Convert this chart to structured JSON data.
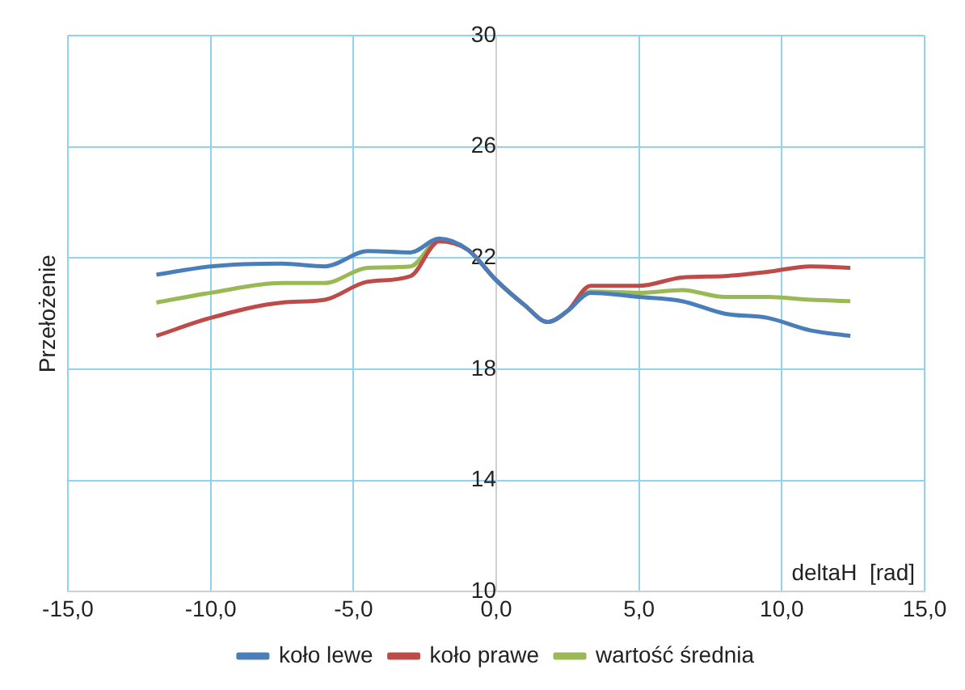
{
  "chart_data": {
    "type": "line",
    "xlabel": "deltaH  [rad]",
    "ylabel": "Przełożenie",
    "x": [
      -11.9,
      -10,
      -7.5,
      -6,
      -4.5,
      -3,
      -2,
      -1,
      0,
      1,
      1.8,
      2.5,
      3.3,
      5,
      6.5,
      8,
      9.5,
      11,
      12.4
    ],
    "series": [
      {
        "name": "koło lewe",
        "color": "#4a7ebb",
        "values": [
          21.4,
          21.7,
          21.8,
          21.7,
          22.25,
          22.2,
          22.7,
          22.3,
          21.2,
          20.3,
          19.7,
          20.1,
          20.75,
          20.6,
          20.45,
          20.0,
          19.85,
          19.4,
          19.2
        ]
      },
      {
        "name": "koło prawe",
        "color": "#be4b48",
        "values": [
          19.2,
          19.85,
          20.4,
          20.5,
          21.15,
          21.35,
          22.6,
          22.3,
          21.2,
          20.3,
          19.7,
          20.1,
          21.0,
          21.0,
          21.3,
          21.35,
          21.5,
          21.7,
          21.65
        ]
      },
      {
        "name": "wartość średnia",
        "color": "#98b954",
        "values": [
          20.4,
          20.75,
          21.1,
          21.1,
          21.65,
          21.7,
          22.65,
          22.3,
          21.2,
          20.3,
          19.7,
          20.1,
          20.8,
          20.75,
          20.85,
          20.6,
          20.6,
          20.5,
          20.45
        ]
      }
    ],
    "xlim": [
      -15,
      15
    ],
    "ylim": [
      10,
      30
    ],
    "xticks": [
      {
        "value": -15,
        "label": "-15,0"
      },
      {
        "value": -10,
        "label": "-10,0"
      },
      {
        "value": -5,
        "label": "-5,0"
      },
      {
        "value": 0,
        "label": "0,0"
      },
      {
        "value": 5,
        "label": "5,0"
      },
      {
        "value": 10,
        "label": "10,0"
      },
      {
        "value": 15,
        "label": "15,0"
      }
    ],
    "yticks": [
      10,
      14,
      18,
      22,
      26,
      30
    ],
    "grid": true,
    "legend": "bottom",
    "marker": "none",
    "line_style": "solid"
  }
}
